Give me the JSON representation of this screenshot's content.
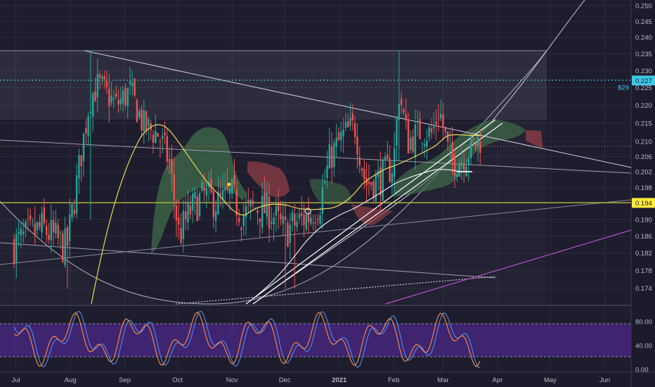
{
  "chart_data": [
    {
      "type": "candlestick",
      "pane": "price",
      "title": "",
      "x_ticks": [
        "Jul",
        "Aug",
        "Sep",
        "Oct",
        "Nov",
        "Dec",
        "2021",
        "Feb",
        "Mar",
        "Apr",
        "May",
        "Jun"
      ],
      "y_ticks": [
        "0.250",
        "0.245",
        "0.240",
        "0.235",
        "0.230",
        "0.225",
        "0.220",
        "0.215",
        "0.210",
        "0.206",
        "0.202",
        "0.198",
        "0.194",
        "0.190",
        "0.186",
        "0.182",
        "0.178",
        "0.174"
      ],
      "ylim": [
        0.1705,
        0.2518
      ],
      "x_range": [
        "2020-06-22",
        "2021-06-16"
      ],
      "log_scale": true,
      "grid": true,
      "price_tags": [
        {
          "label": "0.227",
          "value": 0.2271,
          "color": "#3fc8e6"
        },
        {
          "label": "0.194",
          "value": 0.1941,
          "color": "#ffeb3b"
        }
      ],
      "countdown_label": "$29",
      "horizontal_lines": [
        {
          "value": 0.2271,
          "style": "dotted",
          "color": "#3fc8e6"
        },
        {
          "value": 0.1941,
          "style": "solid",
          "color": "#c9c337"
        },
        {
          "value": 0.2088,
          "style": "dotted",
          "color": "#d66f6f"
        }
      ],
      "colors": {
        "up": "#26a69a",
        "down": "#ef5350",
        "ma_yellow": "#e9d85a",
        "ma_white": "#e8e8f0",
        "cloud_bull": "#3f6b48",
        "cloud_bear": "#8c3d45",
        "trend": "#c9c6d8",
        "magenta_trend": "#b74ed3"
      }
    },
    {
      "type": "line",
      "pane": "stochastic_oscillator",
      "y_ticks": [
        "80.00",
        "40.00",
        "0.00"
      ],
      "ylim": [
        -5,
        105
      ],
      "band": [
        20,
        80
      ],
      "series": [
        {
          "color": "#4b8cf5"
        },
        {
          "color": "#ff8f3f"
        }
      ]
    }
  ]
}
